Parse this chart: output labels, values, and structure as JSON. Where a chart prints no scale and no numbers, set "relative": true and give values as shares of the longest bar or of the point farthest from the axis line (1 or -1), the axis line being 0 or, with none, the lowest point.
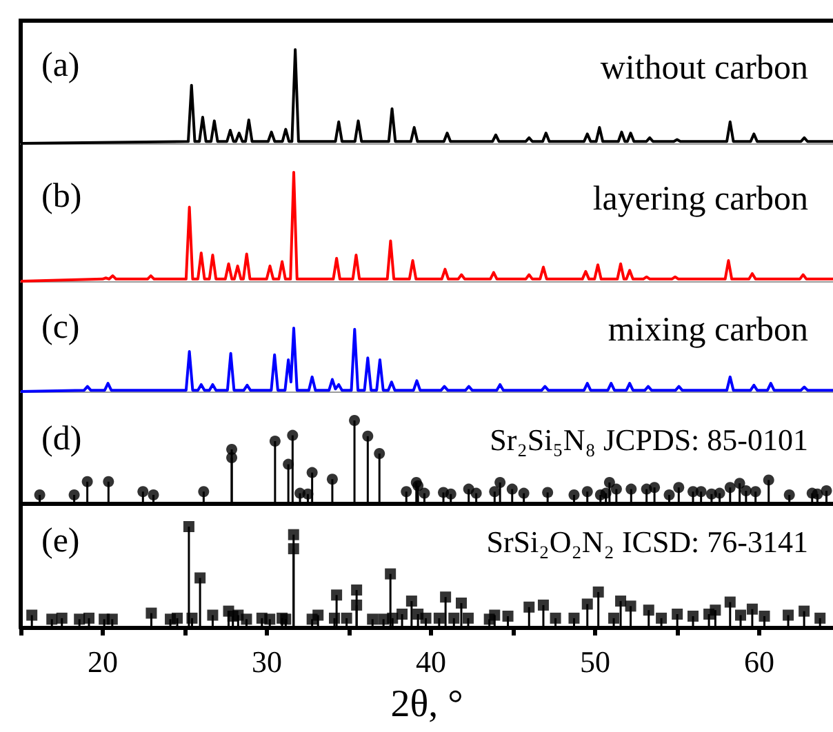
{
  "chart_data": [
    {
      "type": "line",
      "relative": true,
      "tick_labels": false,
      "xlim": [
        15,
        64.5
      ],
      "xticks": [
        20,
        30,
        40,
        50,
        60
      ],
      "annotations": [
        "(a)",
        "without carbon"
      ],
      "series": [
        {
          "color": "#000000",
          "x": [
            15,
            25.21,
            25.41,
            25.61,
            25.89,
            26.09,
            26.29,
            26.6,
            26.8,
            27.0,
            27.57,
            27.77,
            27.97,
            28.11,
            28.31,
            28.51,
            28.7,
            28.9,
            29.1,
            30.08,
            30.28,
            30.48,
            30.95,
            31.15,
            31.35,
            31.53,
            31.73,
            31.93,
            34.18,
            34.38,
            34.58,
            35.37,
            35.57,
            35.77,
            37.43,
            37.63,
            37.83,
            38.78,
            38.98,
            39.18,
            40.79,
            40.99,
            41.19,
            43.75,
            43.95,
            44.15,
            45.78,
            45.98,
            46.18,
            46.81,
            47.01,
            47.21,
            49.33,
            49.53,
            49.73,
            50.07,
            50.27,
            50.47,
            51.42,
            51.62,
            51.82,
            51.97,
            52.17,
            52.37,
            53.13,
            53.33,
            53.53,
            54.8,
            55.0,
            55.2,
            58.03,
            58.23,
            58.43,
            59.48,
            59.68,
            59.88,
            62.55,
            62.75,
            62.95,
            64.5
          ],
          "values": [
            0,
            0.02,
            0.62,
            0.02,
            0.02,
            0.28,
            0.02,
            0.02,
            0.24,
            0.02,
            0.02,
            0.14,
            0.02,
            0.02,
            0.11,
            0.02,
            0.02,
            0.25,
            0.02,
            0.02,
            0.12,
            0.02,
            0.02,
            0.15,
            0.02,
            0.02,
            1,
            0.02,
            0.02,
            0.23,
            0.02,
            0.02,
            0.24,
            0.02,
            0.02,
            0.37,
            0.02,
            0.02,
            0.17,
            0.02,
            0.02,
            0.11,
            0.02,
            0.02,
            0.09,
            0.02,
            0.02,
            0.06,
            0.02,
            0.02,
            0.11,
            0.02,
            0.02,
            0.1,
            0.02,
            0.02,
            0.17,
            0.02,
            0.02,
            0.12,
            0.02,
            0.02,
            0.11,
            0.02,
            0.02,
            0.06,
            0.02,
            0.02,
            0.04,
            0.02,
            0.02,
            0.23,
            0.02,
            0.02,
            0.1,
            0.02,
            0.02,
            0.06,
            0.02,
            0.02
          ]
        }
      ]
    },
    {
      "type": "line",
      "relative": true,
      "tick_labels": false,
      "xlim": [
        15,
        64.5
      ],
      "xticks": [
        20,
        30,
        40,
        50,
        60
      ],
      "annotations": [
        "(b)",
        "layering carbon"
      ],
      "series": [
        {
          "color": "#ff0000",
          "x": [
            15,
            19.99,
            20.19,
            20.39,
            20.41,
            20.61,
            20.81,
            22.73,
            22.93,
            23.13,
            25.08,
            25.28,
            25.48,
            25.8,
            26.0,
            26.2,
            26.5,
            26.7,
            26.9,
            27.47,
            27.67,
            27.87,
            28.02,
            28.22,
            28.42,
            28.57,
            28.77,
            28.97,
            29.99,
            30.19,
            30.39,
            30.73,
            30.93,
            31.13,
            31.44,
            31.64,
            31.84,
            34.05,
            34.25,
            34.45,
            35.24,
            35.44,
            35.64,
            37.34,
            37.54,
            37.74,
            38.69,
            38.89,
            39.09,
            40.66,
            40.86,
            41.06,
            41.66,
            41.86,
            42.06,
            43.62,
            43.82,
            44.02,
            45.78,
            45.98,
            46.18,
            46.65,
            46.85,
            47.05,
            49.23,
            49.43,
            49.63,
            49.97,
            50.17,
            50.37,
            51.36,
            51.56,
            51.76,
            51.91,
            52.11,
            52.31,
            52.94,
            53.14,
            53.34,
            54.68,
            54.88,
            55.08,
            57.93,
            58.13,
            58.33,
            59.38,
            59.58,
            59.78,
            62.48,
            62.68,
            62.88,
            64.5
          ],
          "values": [
            0,
            0.02,
            0.03,
            0.02,
            0.02,
            0.05,
            0.02,
            0.02,
            0.05,
            0.02,
            0.02,
            0.68,
            0.02,
            0.02,
            0.26,
            0.02,
            0.02,
            0.24,
            0.02,
            0.02,
            0.16,
            0.02,
            0.02,
            0.14,
            0.02,
            0.02,
            0.25,
            0.02,
            0.02,
            0.14,
            0.02,
            0.02,
            0.18,
            0.02,
            0.02,
            1,
            0.02,
            0.02,
            0.21,
            0.02,
            0.02,
            0.24,
            0.02,
            0.02,
            0.37,
            0.02,
            0.02,
            0.19,
            0.02,
            0.02,
            0.11,
            0.02,
            0.02,
            0.06,
            0.02,
            0.02,
            0.08,
            0.02,
            0.02,
            0.06,
            0.02,
            0.02,
            0.13,
            0.02,
            0.02,
            0.09,
            0.02,
            0.02,
            0.15,
            0.02,
            0.02,
            0.16,
            0.02,
            0.02,
            0.1,
            0.02,
            0.02,
            0.04,
            0.02,
            0.02,
            0.04,
            0.02,
            0.02,
            0.19,
            0.02,
            0.02,
            0.07,
            0.02,
            0.02,
            0.06,
            0.02,
            0.02
          ]
        }
      ]
    },
    {
      "type": "line",
      "relative": true,
      "tick_labels": false,
      "xlim": [
        15,
        64.5
      ],
      "xticks": [
        20,
        30,
        40,
        50,
        60
      ],
      "annotations": [
        "(c)",
        "mixing carbon"
      ],
      "series": [
        {
          "color": "#0000ff",
          "x": [
            15,
            18.87,
            19.07,
            19.27,
            20.12,
            20.32,
            20.52,
            25.08,
            25.28,
            25.48,
            25.8,
            26.0,
            26.2,
            26.5,
            26.7,
            26.9,
            27.6,
            27.8,
            28.0,
            28.6,
            28.8,
            29.0,
            30.27,
            30.47,
            30.67,
            31.11,
            31.31,
            31.47,
            31.64,
            31.84,
            32.56,
            32.76,
            32.96,
            33.79,
            33.99,
            34.18,
            34.38,
            34.58,
            35.15,
            35.35,
            35.55,
            35.95,
            36.15,
            36.35,
            36.69,
            36.89,
            37.09,
            37.4,
            37.6,
            37.8,
            38.94,
            39.14,
            39.34,
            40.62,
            40.82,
            41.02,
            42.11,
            42.31,
            42.51,
            44.01,
            44.21,
            44.41,
            46.75,
            46.95,
            47.15,
            49.33,
            49.53,
            49.73,
            50.78,
            50.98,
            51.18,
            51.91,
            52.11,
            52.31,
            53.04,
            53.24,
            53.44,
            54.91,
            55.11,
            55.31,
            58.03,
            58.23,
            58.43,
            59.48,
            59.68,
            59.88,
            60.51,
            60.71,
            60.91,
            62.55,
            62.75,
            62.95,
            64.5
          ],
          "values": [
            0,
            0.02,
            0.08,
            0.02,
            0.02,
            0.13,
            0.02,
            0.02,
            0.63,
            0.02,
            0.02,
            0.11,
            0.02,
            0.02,
            0.11,
            0.02,
            0.02,
            0.6,
            0.02,
            0.02,
            0.1,
            0.02,
            0.02,
            0.58,
            0.02,
            0.02,
            0.5,
            0.15,
            1,
            0.02,
            0.02,
            0.23,
            0.02,
            0.02,
            0.19,
            0.04,
            0.11,
            0.02,
            0.02,
            0.98,
            0.02,
            0.02,
            0.53,
            0.02,
            0.02,
            0.5,
            0.02,
            0.02,
            0.15,
            0.02,
            0.02,
            0.17,
            0.02,
            0.02,
            0.08,
            0.02,
            0.02,
            0.08,
            0.02,
            0.02,
            0.11,
            0.02,
            0.02,
            0.08,
            0.02,
            0.02,
            0.13,
            0.02,
            0.02,
            0.13,
            0.02,
            0.02,
            0.13,
            0.02,
            0.02,
            0.08,
            0.02,
            0.02,
            0.08,
            0.02,
            0.02,
            0.23,
            0.02,
            0.02,
            0.1,
            0.02,
            0.02,
            0.13,
            0.02,
            0.02,
            0.07,
            0.02,
            0.02
          ]
        }
      ]
    },
    {
      "type": "lollipop",
      "relative": true,
      "tick_labels": false,
      "marker": "circle",
      "xlim": [
        15,
        64.5
      ],
      "xticks": [
        20,
        30,
        40,
        50,
        60
      ],
      "annotations": [
        "(d)",
        "Sr₂Si₅N₈ JCPDS: 85-0101"
      ],
      "series": [
        {
          "color": "#000000",
          "x": [
            16.16,
            18.26,
            19.06,
            20.35,
            22.45,
            23.09,
            26.15,
            27.86,
            27.86,
            30.5,
            31.31,
            31.57,
            32.02,
            32.5,
            32.76,
            33.99,
            35.34,
            36.15,
            36.86,
            38.5,
            39.11,
            39.21,
            39.6,
            40.76,
            41.21,
            42.3,
            42.76,
            43.88,
            44.21,
            44.95,
            45.66,
            47.11,
            48.72,
            49.53,
            50.33,
            50.66,
            50.88,
            51.3,
            52.2,
            53.14,
            53.62,
            54.52,
            55.1,
            55.97,
            56.46,
            57.1,
            57.59,
            58.23,
            58.81,
            59.2,
            59.78,
            60.58,
            61.84,
            63.23,
            63.55,
            64.1
          ],
          "values": [
            0.1,
            0.1,
            0.26,
            0.26,
            0.14,
            0.1,
            0.14,
            0.65,
            0.55,
            0.75,
            0.47,
            0.82,
            0.12,
            0.11,
            0.37,
            0.29,
            1,
            0.81,
            0.6,
            0.14,
            0.25,
            0.21,
            0.12,
            0.13,
            0.11,
            0.17,
            0.12,
            0.14,
            0.25,
            0.17,
            0.12,
            0.13,
            0.1,
            0.14,
            0.1,
            0.12,
            0.25,
            0.17,
            0.17,
            0.17,
            0.19,
            0.1,
            0.19,
            0.14,
            0.14,
            0.11,
            0.12,
            0.19,
            0.24,
            0.15,
            0.14,
            0.28,
            0.1,
            0.12,
            0.11,
            0.15
          ]
        }
      ]
    },
    {
      "type": "lollipop",
      "relative": true,
      "marker": "square",
      "xlabel": "2θ, °",
      "xlim": [
        15,
        64.5
      ],
      "xticks": [
        {
          "value": 15,
          "label": null
        },
        20,
        {
          "value": 25,
          "label": null
        },
        30,
        {
          "value": 35,
          "label": null
        },
        40,
        {
          "value": 45,
          "label": null
        },
        50,
        {
          "value": 55,
          "label": null
        },
        60
      ],
      "annotations": [
        "(e)",
        "SrSi₂O₂N₂ ICSD: 76-3141"
      ],
      "series": [
        {
          "color": "#000000",
          "x": [
            15.68,
            16.9,
            17.51,
            18.58,
            19.16,
            20.09,
            20.58,
            22.96,
            24.12,
            24.54,
            25.25,
            25.44,
            25.93,
            26.7,
            27.67,
            27.93,
            28.25,
            28.76,
            29.7,
            30.18,
            30.93,
            31.15,
            31.63,
            31.63,
            32.76,
            33.12,
            34.12,
            34.25,
            34.86,
            35.47,
            35.47,
            36.44,
            37.11,
            37.53,
            37.66,
            38.24,
            38.82,
            39.21,
            39.69,
            40.5,
            40.89,
            41.4,
            41.85,
            42.27,
            43.56,
            43.88,
            44.69,
            45.98,
            46.85,
            47.59,
            48.72,
            49.53,
            50.2,
            51.14,
            51.56,
            52.17,
            53.27,
            54.04,
            55.01,
            55.97,
            56.94,
            57.33,
            58.23,
            58.87,
            59.58,
            60.32,
            61.77,
            62.74,
            63.71
          ],
          "values": [
            0.12,
            0.08,
            0.09,
            0.08,
            0.09,
            0.08,
            0.08,
            0.14,
            0.08,
            0.09,
            1,
            0.09,
            0.49,
            0.12,
            0.16,
            0.11,
            0.12,
            0.08,
            0.09,
            0.08,
            0.09,
            0.08,
            0.92,
            0.78,
            0.08,
            0.12,
            0.09,
            0.32,
            0.09,
            0.37,
            0.22,
            0.08,
            0.08,
            0.53,
            0.09,
            0.13,
            0.26,
            0.13,
            0.09,
            0.09,
            0.3,
            0.09,
            0.24,
            0.09,
            0.08,
            0.12,
            0.11,
            0.2,
            0.22,
            0.09,
            0.09,
            0.23,
            0.35,
            0.09,
            0.26,
            0.21,
            0.17,
            0.09,
            0.13,
            0.11,
            0.13,
            0.17,
            0.25,
            0.12,
            0.18,
            0.11,
            0.12,
            0.16,
            0.09
          ]
        }
      ]
    }
  ]
}
